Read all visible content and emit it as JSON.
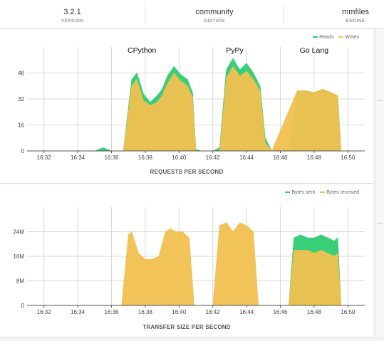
{
  "stats": [
    {
      "value": "3.2.1",
      "label": "VERSION"
    },
    {
      "value": "community",
      "label": "EDITION"
    },
    {
      "value": "mmfiles",
      "label": "ENGINE"
    }
  ],
  "colors": {
    "green": "#2ecc71",
    "orange": "#f0c050",
    "grid": "#d8d8d8",
    "axis": "#666666"
  },
  "chart_data": [
    {
      "type": "area",
      "title": "REQUESTS PER SECOND",
      "xlabel": "",
      "ylabel": "",
      "x_ticks": [
        "16:32",
        "16:34",
        "16:36",
        "16:38",
        "16:40",
        "16:42",
        "16:44",
        "16:46",
        "16:48",
        "16:50"
      ],
      "y_ticks": [
        "0",
        "16",
        "32",
        "48"
      ],
      "ylim": [
        0,
        64
      ],
      "legend_position": "top-right",
      "annotations": [
        "CPython",
        "PyPy",
        "Go Lang"
      ],
      "series": [
        {
          "name": "Reads",
          "color": "#2ecc71",
          "values": [
            [
              16.32,
              0
            ],
            [
              16.35,
              0
            ],
            [
              16.355,
              2
            ],
            [
              16.36,
              0
            ],
            [
              16.367,
              0
            ],
            [
              16.372,
              44
            ],
            [
              16.375,
              48
            ],
            [
              16.379,
              35
            ],
            [
              16.383,
              30
            ],
            [
              16.387,
              34
            ],
            [
              16.39,
              38
            ],
            [
              16.393,
              46
            ],
            [
              16.397,
              52
            ],
            [
              16.401,
              47
            ],
            [
              16.405,
              44
            ],
            [
              16.408,
              36
            ],
            [
              16.41,
              1
            ],
            [
              16.413,
              0
            ],
            [
              16.42,
              0
            ],
            [
              16.424,
              2
            ],
            [
              16.428,
              50
            ],
            [
              16.432,
              57
            ],
            [
              16.436,
              50
            ],
            [
              16.44,
              54
            ],
            [
              16.444,
              48
            ],
            [
              16.448,
              40
            ],
            [
              16.451,
              8
            ],
            [
              16.455,
              0
            ],
            [
              16.462,
              1
            ],
            [
              16.466,
              0
            ],
            [
              16.47,
              37
            ],
            [
              16.475,
              37
            ],
            [
              16.48,
              36
            ],
            [
              16.485,
              38
            ],
            [
              16.49,
              36
            ],
            [
              16.494,
              34
            ],
            [
              16.496,
              0
            ],
            [
              16.51,
              0
            ]
          ]
        },
        {
          "name": "Writes",
          "color": "#f0c050",
          "values": [
            [
              16.32,
              0
            ],
            [
              16.355,
              0
            ],
            [
              16.367,
              0
            ],
            [
              16.372,
              40
            ],
            [
              16.375,
              44
            ],
            [
              16.379,
              31
            ],
            [
              16.383,
              28
            ],
            [
              16.387,
              30
            ],
            [
              16.39,
              34
            ],
            [
              16.393,
              41
            ],
            [
              16.397,
              48
            ],
            [
              16.401,
              43
            ],
            [
              16.405,
              40
            ],
            [
              16.408,
              33
            ],
            [
              16.41,
              0
            ],
            [
              16.424,
              0
            ],
            [
              16.428,
              45
            ],
            [
              16.432,
              52
            ],
            [
              16.436,
              46
            ],
            [
              16.44,
              49
            ],
            [
              16.444,
              44
            ],
            [
              16.448,
              37
            ],
            [
              16.451,
              5
            ],
            [
              16.455,
              0
            ],
            [
              16.47,
              37
            ],
            [
              16.475,
              37
            ],
            [
              16.48,
              36
            ],
            [
              16.485,
              38
            ],
            [
              16.49,
              36
            ],
            [
              16.494,
              34
            ],
            [
              16.496,
              0
            ],
            [
              16.51,
              0
            ]
          ]
        }
      ]
    },
    {
      "type": "area",
      "title": "TRANSFER SIZE PER SECOND",
      "xlabel": "",
      "ylabel": "",
      "x_ticks": [
        "16:32",
        "16:34",
        "16:36",
        "16:38",
        "16:40",
        "16:42",
        "16:44",
        "16:46",
        "16:48",
        "16:50"
      ],
      "y_ticks": [
        "0",
        "8M",
        "16M",
        "24M"
      ],
      "ylim": [
        0,
        32
      ],
      "legend_position": "top-right",
      "series": [
        {
          "name": "Bytes sent",
          "color": "#2ecc71",
          "values": [
            [
              16.32,
              0
            ],
            [
              16.465,
              0
            ],
            [
              16.468,
              22
            ],
            [
              16.472,
              23
            ],
            [
              16.476,
              22
            ],
            [
              16.48,
              22
            ],
            [
              16.484,
              23
            ],
            [
              16.488,
              22
            ],
            [
              16.492,
              21
            ],
            [
              16.494,
              22
            ],
            [
              16.496,
              0
            ],
            [
              16.51,
              0
            ]
          ]
        },
        {
          "name": "Bytes received",
          "color": "#f0c050",
          "values": [
            [
              16.32,
              0
            ],
            [
              16.366,
              0
            ],
            [
              16.37,
              23
            ],
            [
              16.372,
              24
            ],
            [
              16.376,
              17
            ],
            [
              16.38,
              15
            ],
            [
              16.384,
              15
            ],
            [
              16.388,
              16
            ],
            [
              16.392,
              24
            ],
            [
              16.395,
              25
            ],
            [
              16.398,
              24
            ],
            [
              16.402,
              24
            ],
            [
              16.406,
              22
            ],
            [
              16.409,
              0
            ],
            [
              16.42,
              0
            ],
            [
              16.424,
              26
            ],
            [
              16.428,
              27
            ],
            [
              16.432,
              24
            ],
            [
              16.436,
              27
            ],
            [
              16.44,
              26
            ],
            [
              16.444,
              24
            ],
            [
              16.447,
              0
            ],
            [
              16.465,
              0
            ],
            [
              16.468,
              18
            ],
            [
              16.472,
              18
            ],
            [
              16.476,
              18
            ],
            [
              16.48,
              17
            ],
            [
              16.484,
              18
            ],
            [
              16.488,
              17
            ],
            [
              16.492,
              16
            ],
            [
              16.494,
              17
            ],
            [
              16.496,
              0
            ],
            [
              16.51,
              0
            ]
          ]
        }
      ]
    }
  ]
}
